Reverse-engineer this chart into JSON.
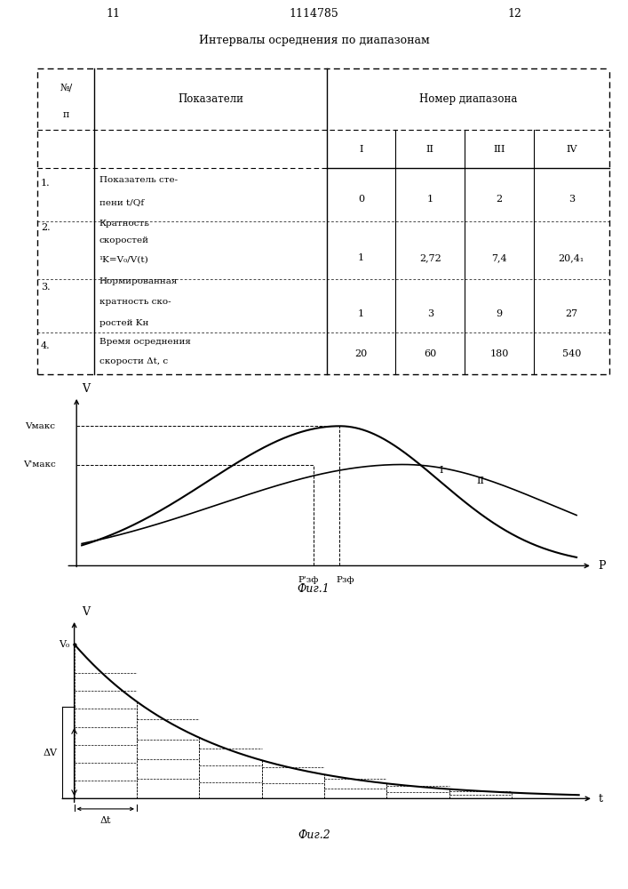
{
  "page_title": "1114785",
  "page_left": "11",
  "page_right": "12",
  "table_title": "Интервалы осреднения по диапазонам",
  "table_subcols": [
    "I",
    "II",
    "III",
    "IV"
  ],
  "table_rows": [
    {
      "num": "1.",
      "label_line1": "Показатель сте-",
      "label_line2": "пени t/Qf",
      "values": [
        "0",
        "1",
        "2",
        "3"
      ]
    },
    {
      "num": "2.",
      "label_line1": "Кратность",
      "label_line2": "скоростей",
      "label_line3": "¹K=V₀/V(t)",
      "values": [
        "1",
        "2,72",
        "7,4",
        "20,4₁"
      ]
    },
    {
      "num": "3.",
      "label_line1": "Нормированная",
      "label_line2": "кратность ско-",
      "label_line3": "ростей Kн",
      "values": [
        "1",
        "3",
        "9",
        "27"
      ]
    },
    {
      "num": "4.",
      "label_line1": "Время осреднения",
      "label_line2": "скорости Δt, с",
      "values": [
        "20",
        "60",
        "180",
        "540"
      ]
    }
  ],
  "fig1_title": "Фиг.1",
  "fig1_xlabel": "P",
  "fig1_ylabel": "V",
  "fig1_label_vmaks": "Vмакс",
  "fig1_label_vmaks2": "V'макс",
  "fig1_curve_I_label": "I",
  "fig1_curve_II_label": "II",
  "fig2_title": "Фиг.2",
  "fig2_xlabel": "t",
  "fig2_ylabel": "V",
  "fig2_label_v0": "V₀",
  "fig2_label_dv": "ΔV",
  "fig2_label_dt": "Δt",
  "background_color": "#ffffff"
}
